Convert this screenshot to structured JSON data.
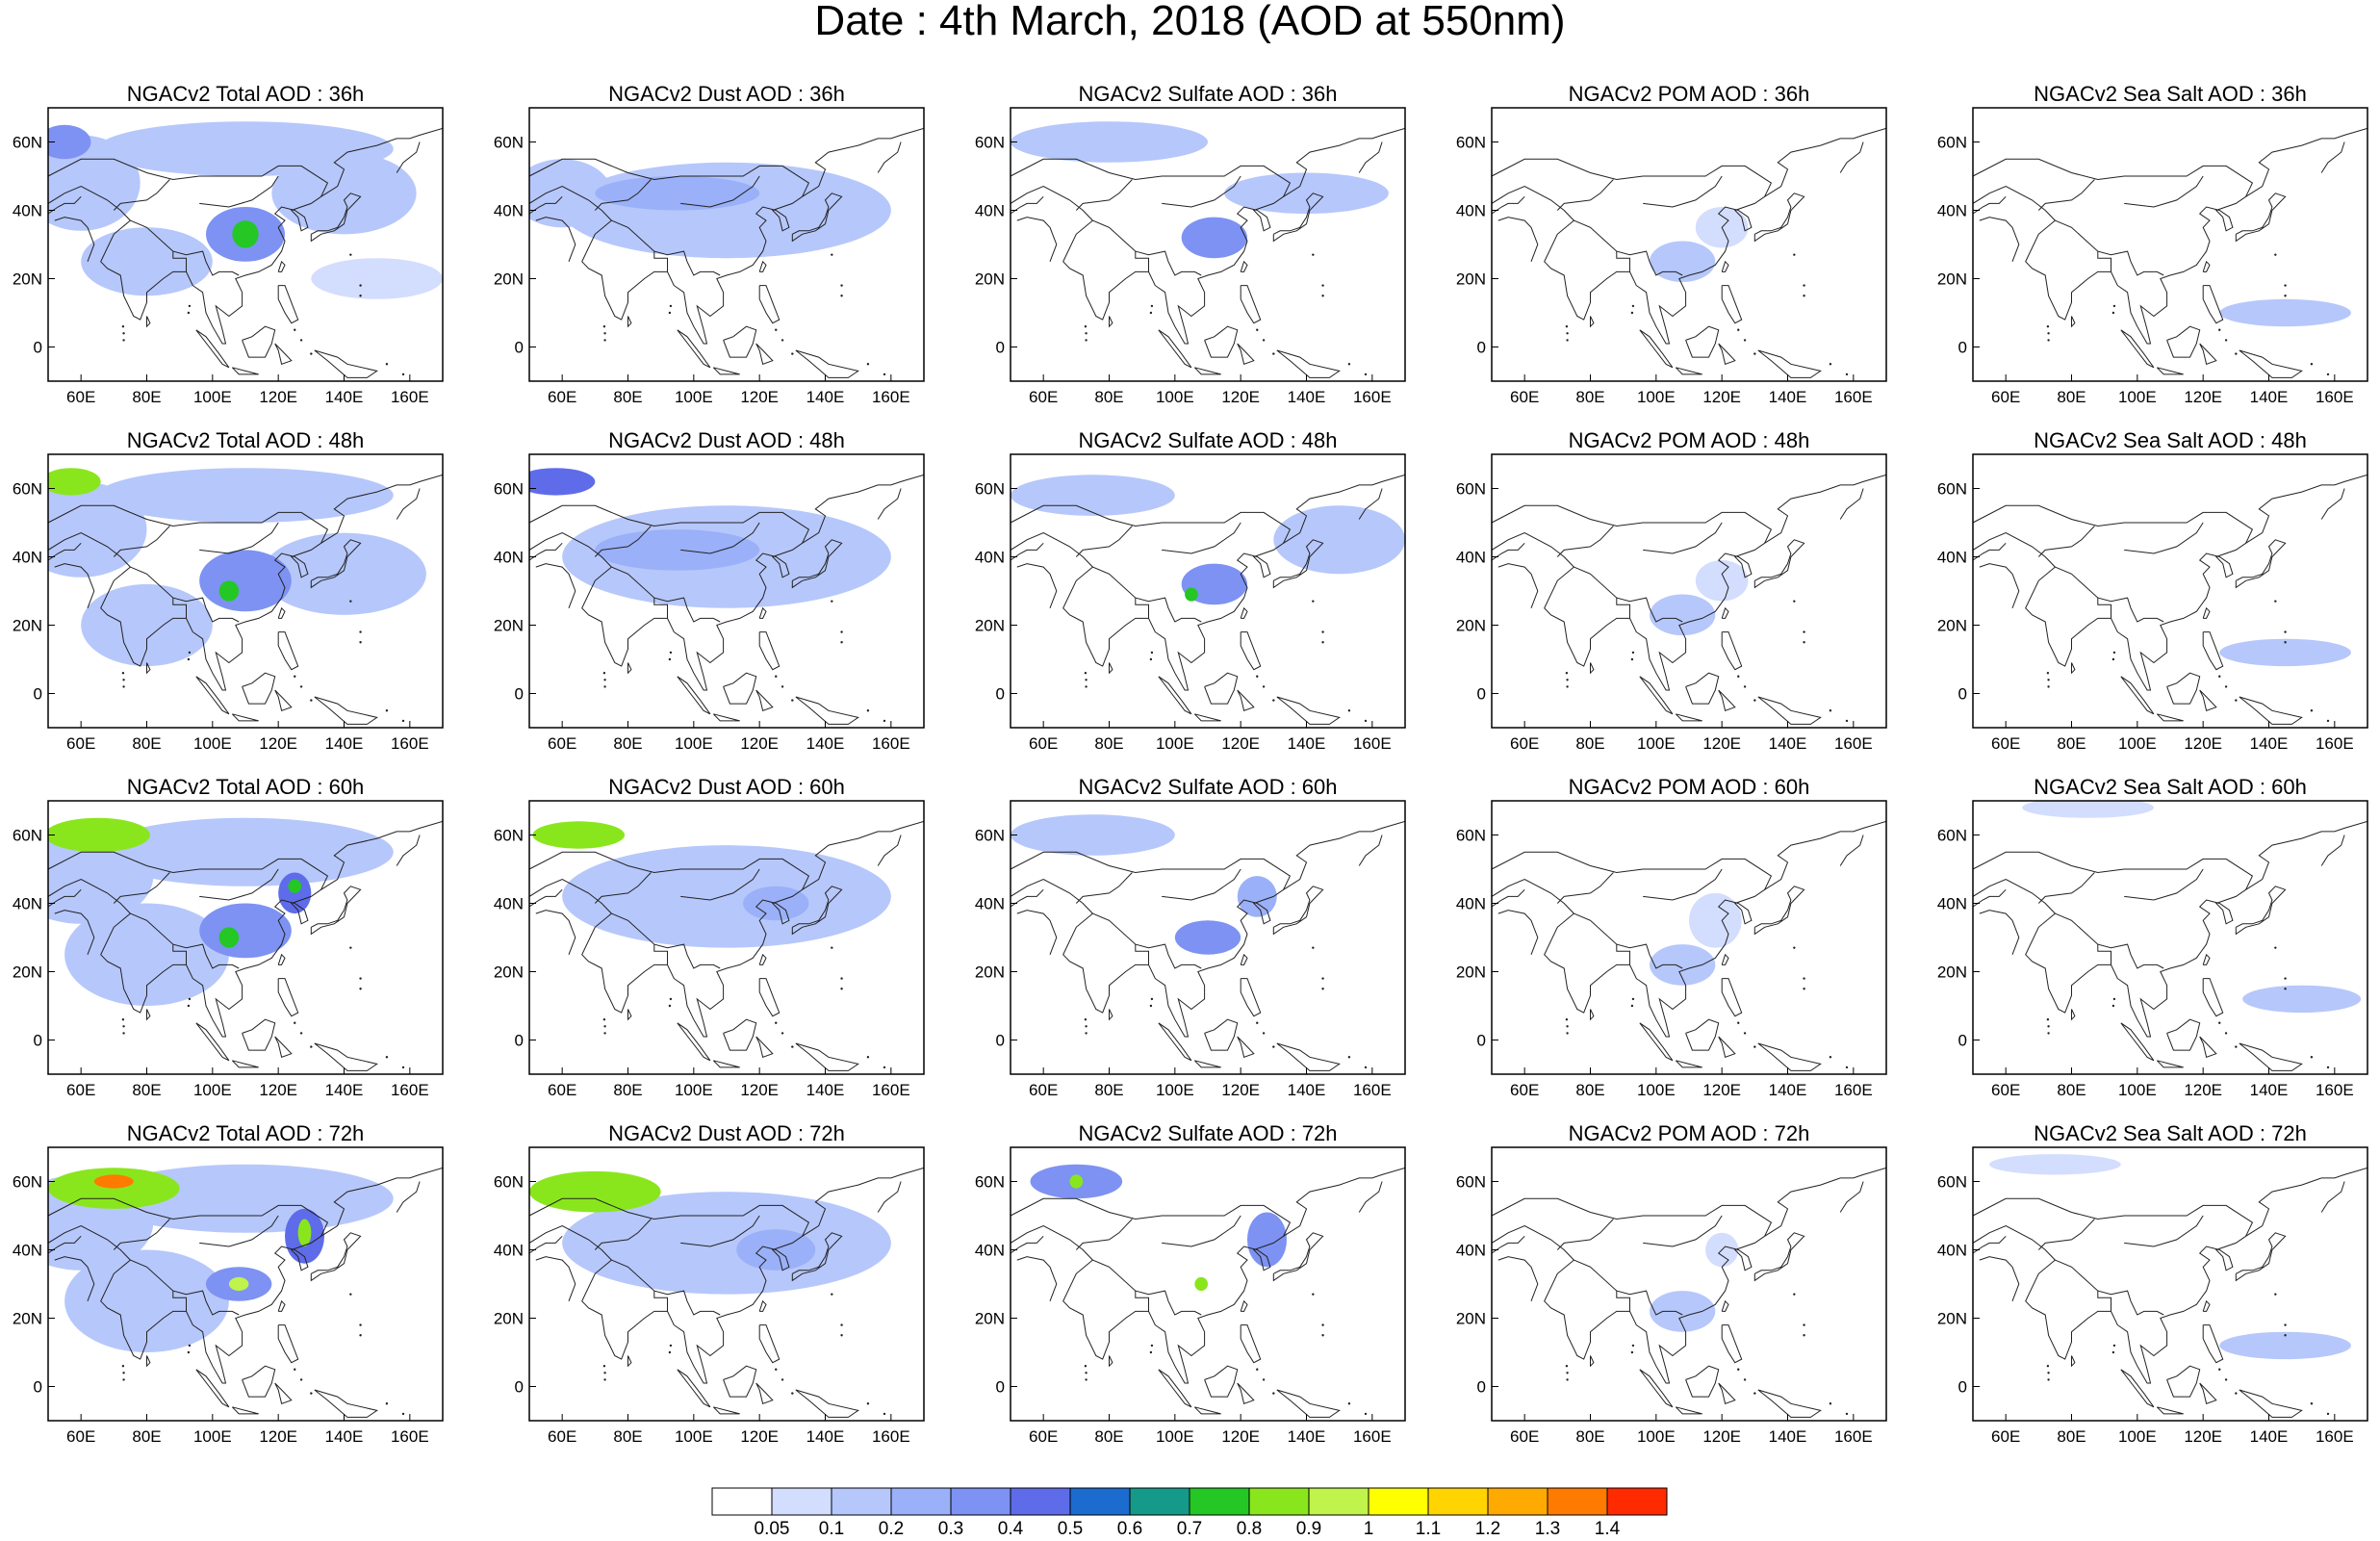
{
  "title": "Date : 4th March, 2018 (AOD at 550nm)",
  "lat_ticks": [
    "60N",
    "40N",
    "20N",
    "0"
  ],
  "lat_values": [
    60,
    40,
    20,
    0
  ],
  "lon_ticks": [
    "60E",
    "80E",
    "100E",
    "120E",
    "140E",
    "160E"
  ],
  "lon_values": [
    60,
    80,
    100,
    120,
    140,
    160
  ],
  "extent": {
    "lon": [
      50,
      170
    ],
    "lat": [
      -10,
      70
    ]
  },
  "species": [
    "Total",
    "Dust",
    "Sulfate",
    "POM",
    "SeaSalt"
  ],
  "rows": [
    {
      "hour": "36h",
      "titles": [
        "NGACv2 Total AOD : 36h",
        "NGACv2 Dust AOD : 36h",
        "NGACv2 Sulfate AOD : 36h",
        "NGACv2 POM AOD : 36h",
        "NGACv2 Sea Salt AOD : 36h"
      ]
    },
    {
      "hour": "48h",
      "titles": [
        "NGACv2 Total AOD : 48h",
        "NGACv2 Dust AOD : 48h",
        "NGACv2 Sulfate AOD : 48h",
        "NGACv2 POM AOD : 48h",
        "NGACv2 Sea Salt AOD : 48h"
      ]
    },
    {
      "hour": "60h",
      "titles": [
        "NGACv2 Total AOD : 60h",
        "NGACv2 Dust AOD : 60h",
        "NGACv2 Sulfate AOD : 60h",
        "NGACv2 POM AOD : 60h",
        "NGACv2 Sea Salt AOD : 60h"
      ]
    },
    {
      "hour": "72h",
      "titles": [
        "NGACv2 Total AOD : 72h",
        "NGACv2 Dust AOD : 72h",
        "NGACv2 Sulfate AOD : 72h",
        "NGACv2 POM AOD : 72h",
        "NGACv2 Sea Salt  AOD : 72h"
      ]
    }
  ],
  "colorbar": {
    "labels": [
      "0.05",
      "0.1",
      "0.2",
      "0.3",
      "0.4",
      "0.5",
      "0.6",
      "0.7",
      "0.8",
      "0.9",
      "1",
      "1.1",
      "1.2",
      "1.3",
      "1.4"
    ],
    "colors": [
      "#ffffff",
      "#d3ddfd",
      "#b6c7fb",
      "#9ab0f8",
      "#7d92f2",
      "#5e6cea",
      "#1c6cd0",
      "#159a8a",
      "#24c724",
      "#8ae61c",
      "#c0f34c",
      "#ffff00",
      "#ffd400",
      "#ffaa00",
      "#ff7a00",
      "#ff2a00"
    ]
  },
  "plumes": {
    "Total": [
      [
        {
          "lon": 60,
          "lat": 48,
          "rx": 18,
          "ry": 14,
          "v": 0.15
        },
        {
          "lon": 110,
          "lat": 58,
          "rx": 45,
          "ry": 8,
          "v": 0.12
        },
        {
          "lon": 110,
          "lat": 33,
          "rx": 12,
          "ry": 8,
          "v": 0.35
        },
        {
          "lon": 110,
          "lat": 33,
          "rx": 4,
          "ry": 4,
          "v": 0.75
        },
        {
          "lon": 140,
          "lat": 45,
          "rx": 22,
          "ry": 12,
          "v": 0.15
        },
        {
          "lon": 55,
          "lat": 60,
          "rx": 8,
          "ry": 5,
          "v": 0.35
        },
        {
          "lon": 80,
          "lat": 25,
          "rx": 20,
          "ry": 10,
          "v": 0.12
        },
        {
          "lon": 150,
          "lat": 20,
          "rx": 20,
          "ry": 6,
          "v": 0.08
        }
      ],
      [
        {
          "lon": 60,
          "lat": 48,
          "rx": 20,
          "ry": 14,
          "v": 0.15
        },
        {
          "lon": 57,
          "lat": 62,
          "rx": 9,
          "ry": 4,
          "v": 0.8
        },
        {
          "lon": 110,
          "lat": 33,
          "rx": 14,
          "ry": 9,
          "v": 0.3
        },
        {
          "lon": 105,
          "lat": 30,
          "rx": 3,
          "ry": 3,
          "v": 0.75
        },
        {
          "lon": 140,
          "lat": 35,
          "rx": 25,
          "ry": 12,
          "v": 0.15
        },
        {
          "lon": 110,
          "lat": 58,
          "rx": 45,
          "ry": 8,
          "v": 0.12
        },
        {
          "lon": 80,
          "lat": 20,
          "rx": 20,
          "ry": 12,
          "v": 0.12
        }
      ],
      [
        {
          "lon": 60,
          "lat": 48,
          "rx": 22,
          "ry": 14,
          "v": 0.15
        },
        {
          "lon": 65,
          "lat": 60,
          "rx": 16,
          "ry": 5,
          "v": 0.85
        },
        {
          "lon": 110,
          "lat": 32,
          "rx": 14,
          "ry": 8,
          "v": 0.3
        },
        {
          "lon": 105,
          "lat": 30,
          "rx": 3,
          "ry": 3,
          "v": 0.75
        },
        {
          "lon": 125,
          "lat": 43,
          "rx": 5,
          "ry": 6,
          "v": 0.45
        },
        {
          "lon": 125,
          "lat": 45,
          "rx": 2,
          "ry": 2,
          "v": 0.75
        },
        {
          "lon": 110,
          "lat": 55,
          "rx": 45,
          "ry": 10,
          "v": 0.12
        },
        {
          "lon": 80,
          "lat": 25,
          "rx": 25,
          "ry": 15,
          "v": 0.12
        }
      ],
      [
        {
          "lon": 60,
          "lat": 48,
          "rx": 22,
          "ry": 14,
          "v": 0.15
        },
        {
          "lon": 70,
          "lat": 58,
          "rx": 20,
          "ry": 6,
          "v": 0.85
        },
        {
          "lon": 70,
          "lat": 60,
          "rx": 6,
          "ry": 2,
          "v": 1.35
        },
        {
          "lon": 108,
          "lat": 30,
          "rx": 10,
          "ry": 5,
          "v": 0.35
        },
        {
          "lon": 108,
          "lat": 30,
          "rx": 3,
          "ry": 2,
          "v": 0.9
        },
        {
          "lon": 128,
          "lat": 44,
          "rx": 6,
          "ry": 8,
          "v": 0.45
        },
        {
          "lon": 128,
          "lat": 45,
          "rx": 2,
          "ry": 4,
          "v": 0.85
        },
        {
          "lon": 110,
          "lat": 55,
          "rx": 45,
          "ry": 10,
          "v": 0.12
        },
        {
          "lon": 80,
          "lat": 25,
          "rx": 25,
          "ry": 15,
          "v": 0.12
        }
      ]
    ],
    "Dust": [
      [
        {
          "lon": 60,
          "lat": 45,
          "rx": 15,
          "ry": 10,
          "v": 0.15
        },
        {
          "lon": 95,
          "lat": 45,
          "rx": 25,
          "ry": 5,
          "v": 0.25
        },
        {
          "lon": 110,
          "lat": 40,
          "rx": 50,
          "ry": 14,
          "v": 0.1
        }
      ],
      [
        {
          "lon": 58,
          "lat": 62,
          "rx": 12,
          "ry": 4,
          "v": 0.45
        },
        {
          "lon": 95,
          "lat": 42,
          "rx": 25,
          "ry": 6,
          "v": 0.2
        },
        {
          "lon": 110,
          "lat": 40,
          "rx": 50,
          "ry": 15,
          "v": 0.1
        }
      ],
      [
        {
          "lon": 65,
          "lat": 60,
          "rx": 14,
          "ry": 4,
          "v": 0.85
        },
        {
          "lon": 110,
          "lat": 42,
          "rx": 50,
          "ry": 15,
          "v": 0.1
        },
        {
          "lon": 125,
          "lat": 40,
          "rx": 10,
          "ry": 5,
          "v": 0.25
        }
      ],
      [
        {
          "lon": 70,
          "lat": 57,
          "rx": 20,
          "ry": 6,
          "v": 0.85
        },
        {
          "lon": 110,
          "lat": 42,
          "rx": 50,
          "ry": 15,
          "v": 0.12
        },
        {
          "lon": 125,
          "lat": 40,
          "rx": 12,
          "ry": 6,
          "v": 0.25
        }
      ]
    ],
    "Sulfate": [
      [
        {
          "lon": 80,
          "lat": 60,
          "rx": 30,
          "ry": 6,
          "v": 0.12
        },
        {
          "lon": 112,
          "lat": 32,
          "rx": 10,
          "ry": 6,
          "v": 0.3
        },
        {
          "lon": 140,
          "lat": 45,
          "rx": 25,
          "ry": 6,
          "v": 0.1
        }
      ],
      [
        {
          "lon": 75,
          "lat": 58,
          "rx": 25,
          "ry": 6,
          "v": 0.15
        },
        {
          "lon": 112,
          "lat": 32,
          "rx": 10,
          "ry": 6,
          "v": 0.3
        },
        {
          "lon": 105,
          "lat": 29,
          "rx": 2,
          "ry": 2,
          "v": 0.75
        },
        {
          "lon": 150,
          "lat": 45,
          "rx": 20,
          "ry": 10,
          "v": 0.1
        }
      ],
      [
        {
          "lon": 75,
          "lat": 60,
          "rx": 25,
          "ry": 6,
          "v": 0.15
        },
        {
          "lon": 110,
          "lat": 30,
          "rx": 10,
          "ry": 5,
          "v": 0.3
        },
        {
          "lon": 125,
          "lat": 42,
          "rx": 6,
          "ry": 6,
          "v": 0.25
        }
      ],
      [
        {
          "lon": 70,
          "lat": 60,
          "rx": 14,
          "ry": 5,
          "v": 0.3
        },
        {
          "lon": 70,
          "lat": 60,
          "rx": 2,
          "ry": 2,
          "v": 0.8
        },
        {
          "lon": 108,
          "lat": 30,
          "rx": 2,
          "ry": 2,
          "v": 0.8
        },
        {
          "lon": 128,
          "lat": 43,
          "rx": 6,
          "ry": 8,
          "v": 0.3
        }
      ]
    ],
    "POM": [
      [
        {
          "lon": 108,
          "lat": 25,
          "rx": 10,
          "ry": 6,
          "v": 0.1
        },
        {
          "lon": 120,
          "lat": 35,
          "rx": 8,
          "ry": 6,
          "v": 0.08
        }
      ],
      [
        {
          "lon": 108,
          "lat": 23,
          "rx": 10,
          "ry": 6,
          "v": 0.1
        },
        {
          "lon": 120,
          "lat": 33,
          "rx": 8,
          "ry": 6,
          "v": 0.08
        }
      ],
      [
        {
          "lon": 108,
          "lat": 22,
          "rx": 10,
          "ry": 6,
          "v": 0.1
        },
        {
          "lon": 118,
          "lat": 35,
          "rx": 8,
          "ry": 8,
          "v": 0.08
        }
      ],
      [
        {
          "lon": 108,
          "lat": 22,
          "rx": 10,
          "ry": 6,
          "v": 0.1
        },
        {
          "lon": 120,
          "lat": 40,
          "rx": 5,
          "ry": 5,
          "v": 0.08
        }
      ]
    ],
    "SeaSalt": [
      [
        {
          "lon": 145,
          "lat": 10,
          "rx": 20,
          "ry": 4,
          "v": 0.1
        }
      ],
      [
        {
          "lon": 145,
          "lat": 12,
          "rx": 20,
          "ry": 4,
          "v": 0.1
        }
      ],
      [
        {
          "lon": 150,
          "lat": 12,
          "rx": 18,
          "ry": 4,
          "v": 0.1
        },
        {
          "lon": 85,
          "lat": 68,
          "rx": 20,
          "ry": 3,
          "v": 0.08
        }
      ],
      [
        {
          "lon": 145,
          "lat": 12,
          "rx": 20,
          "ry": 4,
          "v": 0.1
        },
        {
          "lon": 75,
          "lat": 65,
          "rx": 20,
          "ry": 3,
          "v": 0.08
        }
      ]
    ]
  }
}
